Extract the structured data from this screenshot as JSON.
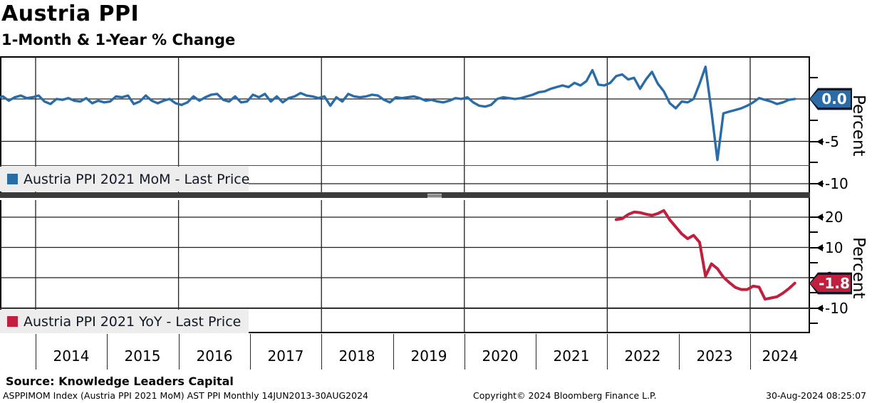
{
  "header": {
    "title": "Austria PPI",
    "subtitle": "1-Month & 1-Year % Change"
  },
  "footer": {
    "source": "Source: Knowledge Leaders Capital",
    "security_info": "ASPPIMOM Index (Austria PPI 2021 MoM) AST PPI  Monthly 14JUN2013-30AUG2024",
    "copyright": "Copyright© 2024 Bloomberg Finance L.P.",
    "timestamp": "30-Aug-2024 08:25:07"
  },
  "colors": {
    "blue": "#2A6CA8",
    "red": "#C01F3E",
    "grid": "#1f1f1f",
    "legend_bg": "#EDEDED",
    "separator": "#3B3B3B"
  },
  "chart_data": {
    "type": "line",
    "title": "Austria PPI",
    "subtitle": "1-Month & 1-Year % Change",
    "xlabel": "",
    "x_axis": {
      "xlim": [
        2013.5,
        2024.84
      ],
      "year_ticks": [
        2014,
        2015,
        2016,
        2017,
        2018,
        2019,
        2020,
        2021,
        2022,
        2023,
        2024
      ],
      "year_labels": [
        "2014",
        "2015",
        "2016",
        "2017",
        "2018",
        "2019",
        "2020",
        "2021",
        "2022",
        "2023",
        "2024"
      ],
      "gridline_years": [
        2014,
        2016,
        2018,
        2020,
        2022,
        2024
      ]
    },
    "panels": [
      {
        "legend": "Austria PPI 2021 MoM - Last Price",
        "ylabel": "Percent",
        "last_price": "0.0",
        "ylim": [
          -11.0,
          4.96
        ],
        "grid_values": [
          0,
          -5,
          -10
        ],
        "major_ticks": [
          {
            "v": 0,
            "label": "0.0",
            "badge": true
          },
          {
            "v": -5,
            "label": "-5"
          },
          {
            "v": -10,
            "label": "-10"
          }
        ],
        "minor_ticks": [
          2.5,
          -2.5,
          -7.5
        ],
        "series": {
          "name": "Austria PPI 2021 MoM",
          "start_year": 2013,
          "start_month": 6,
          "frequency": "monthly",
          "values": [
            0.1,
            0.3,
            -0.2,
            0.2,
            0.4,
            0.1,
            0.2,
            0.4,
            -0.3,
            -0.6,
            0.0,
            -0.1,
            0.1,
            -0.2,
            -0.3,
            0.1,
            -0.5,
            -0.2,
            -0.4,
            -0.3,
            0.3,
            0.2,
            0.4,
            -0.6,
            -0.3,
            0.4,
            -0.2,
            -0.5,
            -0.2,
            0.0,
            -0.5,
            -0.7,
            -0.4,
            0.3,
            -0.2,
            0.2,
            0.5,
            0.6,
            -0.1,
            -0.3,
            0.3,
            -0.4,
            -0.3,
            0.5,
            0.2,
            0.6,
            -0.3,
            0.3,
            -0.4,
            0.1,
            0.3,
            0.7,
            0.4,
            0.3,
            0.1,
            0.3,
            -0.8,
            0.2,
            -0.3,
            0.6,
            0.3,
            0.2,
            0.3,
            0.5,
            0.4,
            -0.1,
            -0.4,
            0.2,
            0.1,
            0.2,
            0.3,
            0.1,
            -0.2,
            -0.1,
            -0.3,
            -0.4,
            -0.2,
            0.1,
            0.0,
            0.2,
            -0.4,
            -0.8,
            -0.9,
            -0.7,
            0.0,
            0.2,
            0.1,
            0.0,
            0.1,
            0.3,
            0.5,
            0.8,
            0.9,
            1.2,
            1.4,
            1.6,
            1.4,
            1.9,
            1.6,
            2.1,
            3.4,
            1.7,
            1.6,
            1.9,
            2.7,
            2.9,
            2.3,
            2.5,
            1.2,
            2.3,
            3.2,
            1.8,
            0.9,
            -0.5,
            -1.1,
            -0.3,
            -0.4,
            0.0,
            1.8,
            3.8,
            -1.5,
            -7.2,
            -1.7,
            -1.5,
            -1.3,
            -1.1,
            -0.8,
            -0.4,
            0.1,
            -0.1,
            -0.3,
            -0.6,
            -0.4,
            -0.1,
            0.0
          ]
        }
      },
      {
        "legend": "Austria PPI 2021 YoY - Last Price",
        "ylabel": "Percent",
        "last_price": "-1.8",
        "ylim": [
          -18.1,
          25.6
        ],
        "grid_values": [
          20,
          10,
          0,
          -10
        ],
        "major_ticks": [
          {
            "v": 20,
            "label": "20"
          },
          {
            "v": 10,
            "label": "10"
          },
          {
            "v": 0,
            "label": "0"
          },
          {
            "v": -1.8,
            "label": "-1.8",
            "badge": true
          },
          {
            "v": -10,
            "label": "-10"
          }
        ],
        "minor_ticks": [
          15,
          5,
          -5,
          -15
        ],
        "series": {
          "name": "Austria PPI 2021 YoY",
          "start_year": 2022,
          "start_month": 2,
          "frequency": "monthly",
          "values": [
            19.2,
            19.5,
            20.9,
            21.7,
            21.5,
            21.0,
            20.6,
            21.2,
            22.2,
            19.1,
            16.8,
            14.5,
            12.9,
            14.0,
            11.7,
            0.5,
            4.6,
            3.0,
            0.2,
            -1.6,
            -3.2,
            -3.9,
            -3.9,
            -2.8,
            -3.1,
            -7.1,
            -6.7,
            -6.3,
            -5.1,
            -3.6,
            -1.8
          ]
        }
      }
    ]
  }
}
